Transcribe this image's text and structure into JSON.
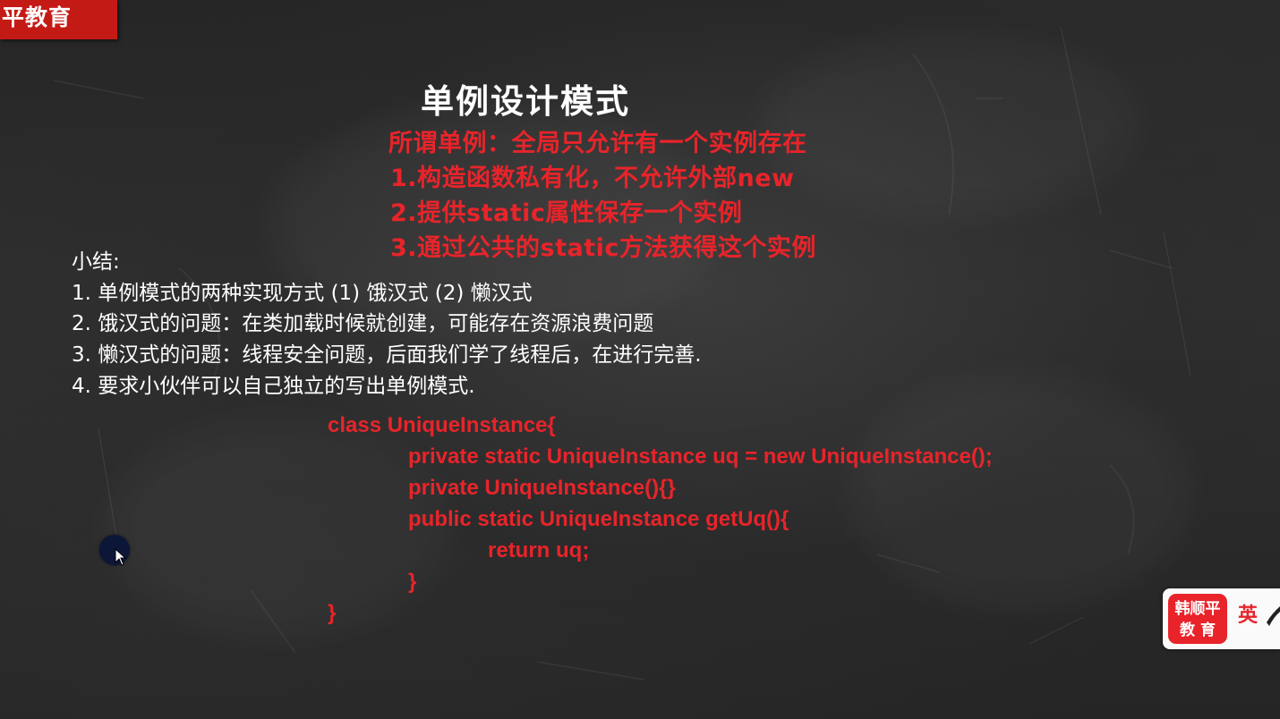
{
  "logo_tag": {
    "text": "平教育"
  },
  "slide": {
    "title": "单例设计模式",
    "definition_lines": [
      "所谓单例：全局只允许有一个实例存在",
      "1.构造函数私有化，不允许外部new",
      "2.提供static属性保存一个实例",
      "3.通过公共的static方法获得这个实例"
    ],
    "summary": [
      "小结:",
      "1. 单例模式的两种实现方式 (1) 饿汉式 (2) 懒汉式",
      "2. 饿汉式的问题：在类加载时候就创建，可能存在资源浪费问题",
      "3. 懒汉式的问题：线程安全问题，后面我们学了线程后，在进行完善.",
      "4. 要求小伙伴可以自己独立的写出单例模式."
    ],
    "code_lines": [
      "class UniqueInstance{",
      "private static UniqueInstance uq = new UniqueInstance();",
      "private UniqueInstance(){}",
      "public static UniqueInstance getUq(){",
      "return uq;",
      "}",
      "}"
    ]
  },
  "brand_widget": {
    "badge_line1": "韩顺平",
    "badge_line2": "教 育",
    "lang_label": "英"
  },
  "colors": {
    "accent_red": "#e8242a",
    "logo_red": "#c41a16",
    "board_dark": "#2a2a2a",
    "cursor_navy": "#0c1738"
  },
  "icons": {
    "cursor": "mouse-pointer-icon",
    "cursor_highlight": "cursor-highlight-icon",
    "swoosh": "brush-swoosh-icon"
  }
}
